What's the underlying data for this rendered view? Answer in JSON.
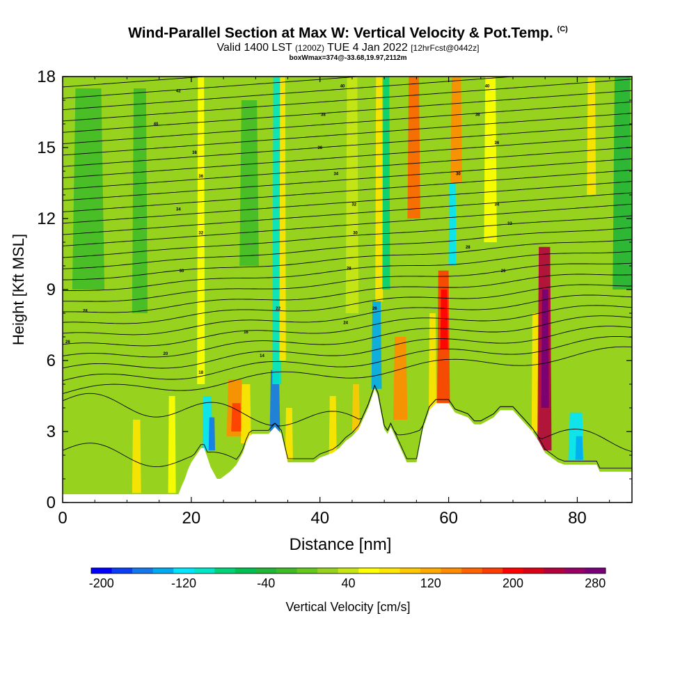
{
  "header": {
    "title": "Wind-Parallel Section at Max W: Vertical Velocity & Pot.Temp.",
    "title_tag": "(C)",
    "valid_text": "Valid 1400 LST",
    "valid_utc": "(1200Z)",
    "date_text": "TUE 4 Jan 2022",
    "fcst_text": "[12hrFcst@0442z]",
    "box_text": "boxWmax=374@-33.68,19.97,2112m"
  },
  "chart_data": {
    "type": "heatmap",
    "xlabel": "Distance [nm]",
    "ylabel": "Height [Kft MSL]",
    "xlim": [
      0,
      88.5
    ],
    "ylim": [
      0,
      18
    ],
    "x_ticks": [
      0,
      20,
      40,
      60,
      80
    ],
    "y_ticks": [
      0,
      3,
      6,
      9,
      12,
      15,
      18
    ],
    "background_velocity_cm_s": 20,
    "terrain": {
      "x": [
        0,
        18,
        18.5,
        19,
        19.5,
        20,
        21,
        21.5,
        22,
        22.5,
        23,
        24,
        24.5,
        26,
        27,
        28,
        28.5,
        29,
        29.5,
        31,
        32,
        33,
        34,
        34.5,
        35,
        38,
        39,
        40,
        41,
        42,
        43,
        44,
        45,
        46,
        46.5,
        47,
        47.5,
        48,
        48.5,
        49,
        50,
        50.5,
        51,
        52,
        53,
        53.5,
        55,
        56,
        57,
        58,
        60,
        61,
        63,
        64,
        65,
        67,
        68,
        70,
        71,
        73,
        74,
        75,
        77,
        78,
        79,
        82,
        83,
        83.5,
        84,
        88.5
      ],
      "y": [
        0.35,
        0.35,
        0.7,
        1.0,
        1.4,
        1.7,
        2.1,
        2.3,
        2.3,
        1.9,
        1.5,
        1.0,
        1.0,
        1.3,
        1.6,
        2.1,
        2.5,
        2.8,
        2.9,
        2.9,
        2.9,
        3.2,
        2.9,
        2.3,
        1.7,
        1.7,
        1.7,
        1.9,
        2.0,
        2.1,
        2.3,
        2.6,
        2.8,
        3.1,
        3.4,
        3.7,
        4.0,
        4.4,
        4.8,
        4.5,
        3.1,
        2.9,
        3.2,
        2.6,
        2.0,
        1.7,
        1.7,
        3.1,
        3.9,
        4.2,
        4.2,
        3.8,
        3.6,
        3.3,
        3.3,
        3.6,
        3.9,
        3.9,
        3.6,
        3.0,
        2.6,
        2.1,
        1.7,
        1.6,
        1.6,
        1.6,
        1.6,
        1.3,
        1.3,
        1.3
      ]
    },
    "velocity_features": [
      {
        "x": 11.5,
        "y0": 0.4,
        "y1": 3.5,
        "w": 0.7,
        "v": 80
      },
      {
        "x": 17.0,
        "y0": 0.4,
        "y1": 4.5,
        "w": 0.6,
        "v": 60
      },
      {
        "x": 22.5,
        "y0": 2.2,
        "y1": 4.5,
        "w": 0.8,
        "v": -130
      },
      {
        "x": 23.2,
        "y0": 2.2,
        "y1": 3.6,
        "w": 0.5,
        "v": -170
      },
      {
        "x": 21.5,
        "y0": 5.0,
        "y1": 18.0,
        "w": 0.6,
        "v": 60
      },
      {
        "x": 26.8,
        "y0": 2.8,
        "y1": 5.2,
        "w": 1.3,
        "v": 130
      },
      {
        "x": 27.0,
        "y0": 3.0,
        "y1": 4.2,
        "w": 0.8,
        "v": 170
      },
      {
        "x": 28.5,
        "y0": 2.5,
        "y1": 5.0,
        "w": 0.8,
        "v": 80
      },
      {
        "x": 33.0,
        "y0": 3.0,
        "y1": 5.6,
        "w": 0.8,
        "v": -170
      },
      {
        "x": 33.3,
        "y0": 5.0,
        "y1": 18.0,
        "w": 0.7,
        "v": -110
      },
      {
        "x": 34.2,
        "y0": 6.0,
        "y1": 18.0,
        "w": 0.5,
        "v": 70
      },
      {
        "x": 35.2,
        "y0": 1.8,
        "y1": 4.0,
        "w": 0.6,
        "v": 70
      },
      {
        "x": 42.0,
        "y0": 2.0,
        "y1": 4.5,
        "w": 0.6,
        "v": 70
      },
      {
        "x": 45.6,
        "y0": 3.0,
        "y1": 5.0,
        "w": 0.6,
        "v": 90
      },
      {
        "x": 48.8,
        "y0": 4.8,
        "y1": 8.5,
        "w": 0.8,
        "v": -150
      },
      {
        "x": 49.2,
        "y0": 8.5,
        "y1": 18.0,
        "w": 0.6,
        "v": 80
      },
      {
        "x": 50.3,
        "y0": 9.0,
        "y1": 18.0,
        "w": 0.6,
        "v": -90
      },
      {
        "x": 52.5,
        "y0": 3.5,
        "y1": 7.0,
        "w": 1.1,
        "v": 130
      },
      {
        "x": 54.6,
        "y0": 12.0,
        "y1": 18.0,
        "w": 1.0,
        "v": 150
      },
      {
        "x": 57.5,
        "y0": 3.5,
        "y1": 8.0,
        "w": 0.6,
        "v": 80
      },
      {
        "x": 59.2,
        "y0": 4.2,
        "y1": 9.8,
        "w": 1.0,
        "v": 170
      },
      {
        "x": 59.3,
        "y0": 6.5,
        "y1": 9.0,
        "w": 0.6,
        "v": 200
      },
      {
        "x": 60.6,
        "y0": 10.0,
        "y1": 13.5,
        "w": 0.6,
        "v": -120
      },
      {
        "x": 61.2,
        "y0": 13.5,
        "y1": 18.0,
        "w": 0.9,
        "v": 130
      },
      {
        "x": 73.5,
        "y0": 3.0,
        "y1": 8.0,
        "w": 0.6,
        "v": 80
      },
      {
        "x": 74.9,
        "y0": 2.2,
        "y1": 10.8,
        "w": 1.1,
        "v": 240
      },
      {
        "x": 75.0,
        "y0": 4.0,
        "y1": 9.0,
        "w": 0.6,
        "v": 280
      },
      {
        "x": 79.8,
        "y0": 1.8,
        "y1": 3.8,
        "w": 1.2,
        "v": -120
      },
      {
        "x": 80.3,
        "y0": 1.8,
        "y1": 2.8,
        "w": 0.6,
        "v": -150
      },
      {
        "x": 82.2,
        "y0": 13.0,
        "y1": 18.0,
        "w": 0.7,
        "v": 80
      },
      {
        "x": 4.0,
        "y0": 9.0,
        "y1": 17.5,
        "w": 2.5,
        "v": -15
      },
      {
        "x": 12.0,
        "y0": 8.0,
        "y1": 17.5,
        "w": 1.2,
        "v": -25
      },
      {
        "x": 29.0,
        "y0": 10.0,
        "y1": 17.0,
        "w": 1.5,
        "v": -20
      },
      {
        "x": 45.0,
        "y0": 8.0,
        "y1": 18.0,
        "w": 1.0,
        "v": 45
      },
      {
        "x": 66.5,
        "y0": 11.0,
        "y1": 18.0,
        "w": 1.0,
        "v": 50
      },
      {
        "x": 87.0,
        "y0": 9.0,
        "y1": 18.0,
        "w": 1.5,
        "v": -40
      }
    ],
    "theta_contour_labels": [
      {
        "x": 0.8,
        "y": 6.8,
        "text": "26"
      },
      {
        "x": 3.5,
        "y": 8.1,
        "text": "28"
      },
      {
        "x": 18.5,
        "y": 9.8,
        "text": "30"
      },
      {
        "x": 21.5,
        "y": 11.4,
        "text": "32"
      },
      {
        "x": 18.0,
        "y": 12.4,
        "text": "34"
      },
      {
        "x": 21.5,
        "y": 13.8,
        "text": "36"
      },
      {
        "x": 20.5,
        "y": 14.8,
        "text": "38"
      },
      {
        "x": 14.5,
        "y": 16.0,
        "text": "40"
      },
      {
        "x": 18.0,
        "y": 17.4,
        "text": "42"
      },
      {
        "x": 16.0,
        "y": 6.3,
        "text": "20"
      },
      {
        "x": 21.5,
        "y": 5.5,
        "text": "18"
      },
      {
        "x": 28.5,
        "y": 7.2,
        "text": "16"
      },
      {
        "x": 31.0,
        "y": 6.2,
        "text": "14"
      },
      {
        "x": 33.5,
        "y": 8.2,
        "text": "22"
      },
      {
        "x": 44.0,
        "y": 7.6,
        "text": "24"
      },
      {
        "x": 48.5,
        "y": 8.2,
        "text": "26"
      },
      {
        "x": 44.5,
        "y": 9.9,
        "text": "28"
      },
      {
        "x": 45.5,
        "y": 11.4,
        "text": "30"
      },
      {
        "x": 45.3,
        "y": 12.6,
        "text": "32"
      },
      {
        "x": 42.5,
        "y": 13.9,
        "text": "34"
      },
      {
        "x": 40.0,
        "y": 15.0,
        "text": "36"
      },
      {
        "x": 40.5,
        "y": 16.4,
        "text": "38"
      },
      {
        "x": 43.5,
        "y": 17.6,
        "text": "40"
      },
      {
        "x": 61.5,
        "y": 13.9,
        "text": "30"
      },
      {
        "x": 63.0,
        "y": 10.8,
        "text": "28"
      },
      {
        "x": 68.5,
        "y": 9.8,
        "text": "26"
      },
      {
        "x": 69.5,
        "y": 11.8,
        "text": "32"
      },
      {
        "x": 67.5,
        "y": 12.6,
        "text": "34"
      },
      {
        "x": 67.5,
        "y": 15.2,
        "text": "36"
      },
      {
        "x": 64.5,
        "y": 16.4,
        "text": "38"
      },
      {
        "x": 66.0,
        "y": 17.6,
        "text": "40"
      }
    ],
    "colorbar": {
      "label": "Vertical Velocity [cm/s]",
      "tick_labels": [
        "-200",
        "-120",
        "-40",
        "40",
        "120",
        "200",
        "280"
      ],
      "tick_values": [
        -200,
        -120,
        -40,
        40,
        120,
        200,
        280
      ],
      "bin_edges_cm_s": [
        -200,
        280
      ],
      "colors": [
        "#0000ff",
        "#0a3ef5",
        "#1478eb",
        "#00aaf0",
        "#00e6ff",
        "#00e6c8",
        "#00d278",
        "#00c050",
        "#22b436",
        "#40bb28",
        "#64c81e",
        "#96d21e",
        "#c8e614",
        "#ffff00",
        "#ffe600",
        "#ffc800",
        "#ffaa00",
        "#ff8c00",
        "#ff6400",
        "#ff3c00",
        "#ff0000",
        "#dc0014",
        "#b4003c",
        "#960064",
        "#780078"
      ]
    }
  }
}
